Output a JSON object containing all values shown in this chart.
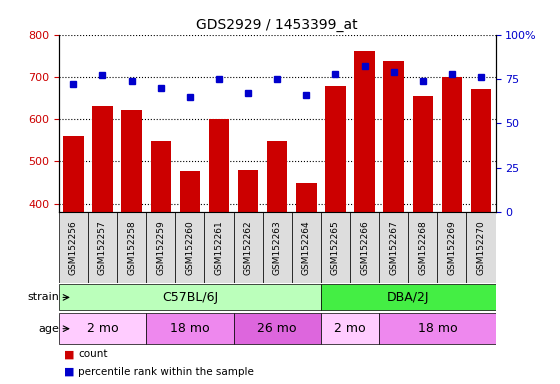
{
  "title": "GDS2929 / 1453399_at",
  "samples": [
    "GSM152256",
    "GSM152257",
    "GSM152258",
    "GSM152259",
    "GSM152260",
    "GSM152261",
    "GSM152262",
    "GSM152263",
    "GSM152264",
    "GSM152265",
    "GSM152266",
    "GSM152267",
    "GSM152268",
    "GSM152269",
    "GSM152270"
  ],
  "counts": [
    560,
    632,
    622,
    548,
    476,
    600,
    480,
    548,
    448,
    678,
    762,
    738,
    654,
    700,
    672
  ],
  "percentile_ranks": [
    72,
    77,
    74,
    70,
    65,
    75,
    67,
    75,
    66,
    78,
    82,
    79,
    74,
    78,
    76
  ],
  "ylim_left": [
    380,
    800
  ],
  "ylim_right": [
    0,
    100
  ],
  "yticks_left": [
    400,
    500,
    600,
    700,
    800
  ],
  "yticks_right": [
    0,
    25,
    50,
    75,
    100
  ],
  "bar_color": "#cc0000",
  "dot_color": "#0000cc",
  "strain_groups": [
    {
      "label": "C57BL/6J",
      "start": 0,
      "end": 9,
      "color": "#bbffbb"
    },
    {
      "label": "DBA/2J",
      "start": 9,
      "end": 15,
      "color": "#44ee44"
    }
  ],
  "age_groups": [
    {
      "label": "2 mo",
      "start": 0,
      "end": 3,
      "color": "#ffccff"
    },
    {
      "label": "18 mo",
      "start": 3,
      "end": 6,
      "color": "#ee88ee"
    },
    {
      "label": "26 mo",
      "start": 6,
      "end": 9,
      "color": "#dd66dd"
    },
    {
      "label": "2 mo",
      "start": 9,
      "end": 11,
      "color": "#ffccff"
    },
    {
      "label": "18 mo",
      "start": 11,
      "end": 15,
      "color": "#ee88ee"
    }
  ],
  "background_color": "#ffffff",
  "tick_color_left": "#cc0000",
  "tick_color_right": "#0000cc",
  "label_bg_color": "#dddddd",
  "plot_bg_color": "#ffffff"
}
